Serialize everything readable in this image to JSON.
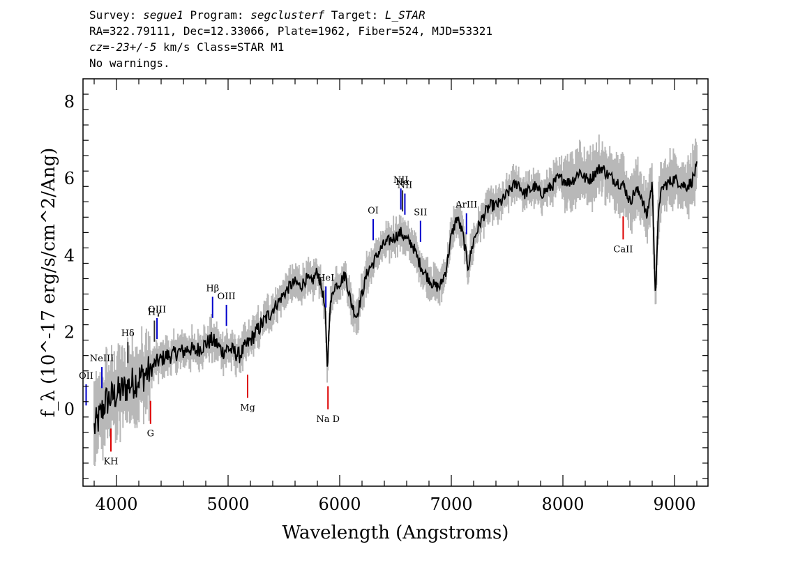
{
  "header": {
    "line1": [
      {
        "text": "Survey: ",
        "italic": false
      },
      {
        "text": "segue1",
        "italic": true
      },
      {
        "text": " Program: ",
        "italic": false
      },
      {
        "text": "segclusterf",
        "italic": true
      },
      {
        "text": " Target: ",
        "italic": false
      },
      {
        "text": "L_STAR",
        "italic": true
      }
    ],
    "line2": "RA=322.79111, Dec=12.33066, Plate=1962, Fiber=524, MJD=53321",
    "line3": [
      {
        "text": "cz=-23+/-5",
        "italic": true
      },
      {
        "text": " km/s Class=STAR M1",
        "italic": false
      }
    ],
    "line4": "No warnings."
  },
  "chart_data": {
    "type": "line",
    "xlabel": "Wavelength (Angstroms)",
    "ylabel": "f_λ (10^-17 erg/s/cm^2/Ang)",
    "xlim": [
      3700,
      9300
    ],
    "ylim": [
      -2.0,
      8.6
    ],
    "xticks": [
      4000,
      5000,
      6000,
      7000,
      8000,
      9000
    ],
    "yticks": [
      0,
      2,
      4,
      6,
      8
    ],
    "series": [
      {
        "color": "#000000",
        "x": [
          3800,
          3850,
          3900,
          3950,
          4000,
          4050,
          4100,
          4150,
          4200,
          4250,
          4300,
          4350,
          4400,
          4450,
          4500,
          4550,
          4600,
          4650,
          4700,
          4750,
          4800,
          4850,
          4900,
          4950,
          5000,
          5050,
          5100,
          5150,
          5200,
          5250,
          5300,
          5350,
          5400,
          5450,
          5500,
          5550,
          5600,
          5650,
          5700,
          5750,
          5800,
          5850,
          5870,
          5890,
          5910,
          5950,
          6000,
          6050,
          6100,
          6150,
          6200,
          6250,
          6300,
          6350,
          6400,
          6450,
          6500,
          6550,
          6600,
          6650,
          6700,
          6750,
          6800,
          6850,
          6900,
          6950,
          7000,
          7050,
          7100,
          7150,
          7200,
          7250,
          7300,
          7350,
          7400,
          7450,
          7500,
          7550,
          7600,
          7650,
          7700,
          7750,
          7800,
          7850,
          7900,
          7950,
          8000,
          8050,
          8100,
          8150,
          8200,
          8250,
          8300,
          8350,
          8400,
          8450,
          8500,
          8550,
          8600,
          8650,
          8700,
          8750,
          8800,
          8830,
          8860,
          8900,
          8950,
          9000,
          9050,
          9100,
          9150,
          9200
        ],
        "y": [
          -0.5,
          -0.2,
          0.2,
          0.3,
          0.4,
          0.5,
          0.6,
          0.7,
          0.8,
          0.9,
          1.0,
          1.2,
          1.3,
          1.4,
          1.4,
          1.5,
          1.5,
          1.6,
          1.5,
          1.6,
          1.7,
          1.8,
          1.7,
          1.5,
          1.6,
          1.5,
          1.4,
          1.6,
          1.8,
          2.0,
          2.2,
          2.4,
          2.6,
          2.8,
          3.0,
          3.2,
          3.3,
          3.2,
          3.4,
          3.3,
          3.6,
          3.0,
          2.5,
          1.0,
          2.6,
          3.2,
          3.3,
          3.5,
          2.8,
          2.4,
          3.0,
          3.6,
          3.8,
          4.1,
          4.3,
          4.4,
          4.5,
          4.6,
          4.4,
          4.3,
          3.9,
          3.6,
          3.4,
          3.2,
          3.2,
          3.6,
          4.5,
          5.0,
          4.6,
          3.7,
          4.4,
          4.8,
          5.1,
          5.3,
          5.3,
          5.4,
          5.6,
          5.8,
          5.9,
          5.6,
          5.7,
          5.8,
          5.6,
          5.7,
          5.8,
          6.0,
          6.0,
          5.9,
          6.0,
          6.2,
          6.0,
          6.0,
          6.2,
          6.3,
          6.1,
          6.0,
          5.9,
          5.8,
          5.4,
          5.7,
          5.6,
          5.0,
          5.9,
          2.9,
          5.4,
          5.8,
          5.9,
          6.0,
          5.9,
          5.8,
          5.9,
          6.3
        ]
      }
    ],
    "noise_band_color": "#b8b8b8",
    "lines": [
      {
        "label": "KH",
        "x": 3950,
        "color": "#dd0000"
      },
      {
        "label": "G",
        "x": 4305,
        "color": "#dd0000"
      },
      {
        "label": "Mg",
        "x": 5175,
        "color": "#dd0000"
      },
      {
        "label": "Na D",
        "x": 5895,
        "color": "#dd0000"
      },
      {
        "label": "CaII",
        "x": 8540,
        "color": "#dd0000"
      },
      {
        "label": "OII",
        "x": 3728,
        "color": "#0000cc"
      },
      {
        "label": "NeIII",
        "x": 3869,
        "color": "#0000cc"
      },
      {
        "label": "Hδ",
        "x": 4102,
        "color": "#333333"
      },
      {
        "label": "Hγ",
        "x": 4340,
        "color": "#333333"
      },
      {
        "label": "OIII",
        "x": 4363,
        "color": "#0000cc"
      },
      {
        "label": "Hβ",
        "x": 4861,
        "color": "#0000cc"
      },
      {
        "label": "OIII",
        "x": 4985,
        "color": "#0000cc"
      },
      {
        "label": "HeI",
        "x": 5876,
        "color": "#0000cc"
      },
      {
        "label": "OI",
        "x": 6300,
        "color": "#0000cc"
      },
      {
        "label": "NII",
        "x": 6548,
        "color": "#0000cc"
      },
      {
        "label": "Hα",
        "x": 6563,
        "color": "#333333"
      },
      {
        "label": "NII",
        "x": 6584,
        "color": "#0000cc"
      },
      {
        "label": "SII",
        "x": 6724,
        "color": "#0000cc"
      },
      {
        "label": "ArIII",
        "x": 7136,
        "color": "#0000cc"
      }
    ]
  }
}
